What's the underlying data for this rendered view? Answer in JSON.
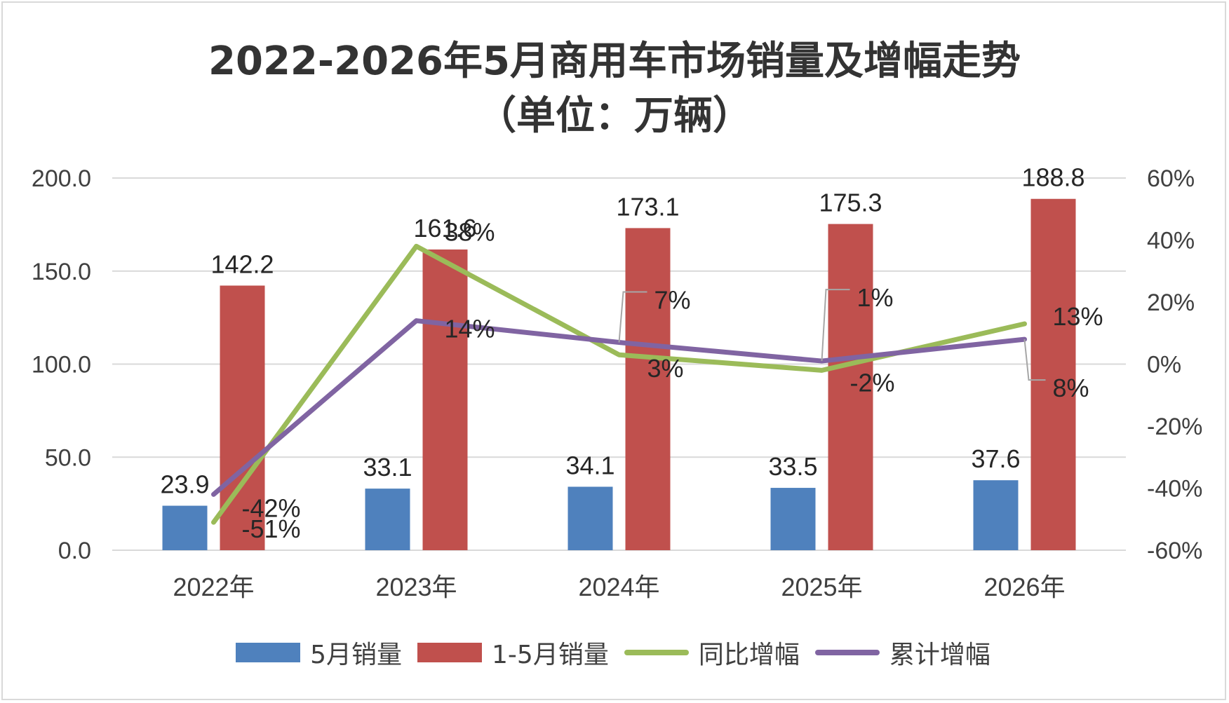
{
  "title_line1": "2022-2026年5月商用车市场销量及增幅走势",
  "title_line2": "（单位：万辆）",
  "colors": {
    "may_bar": "#4f81bd",
    "ytd_bar": "#c0504d",
    "yoy_line": "#9bbb59",
    "cum_line": "#8064a2",
    "grid": "#d9d9d9",
    "axis_text": "#404040"
  },
  "chart_data": {
    "type": "bar",
    "categories": [
      "2022年",
      "2023年",
      "2024年",
      "2025年",
      "2026年"
    ],
    "series": [
      {
        "name": "5月销量",
        "type": "bar",
        "axis": "left",
        "values": [
          23.9,
          33.1,
          34.1,
          33.5,
          37.6
        ],
        "labels": [
          "23.9",
          "33.1",
          "34.1",
          "33.5",
          "37.6"
        ]
      },
      {
        "name": "1-5月销量",
        "type": "bar",
        "axis": "left",
        "values": [
          142.2,
          161.6,
          173.1,
          175.3,
          188.8
        ],
        "labels": [
          "142.2",
          "161.6",
          "173.1",
          "175.3",
          "188.8"
        ]
      },
      {
        "name": "同比增幅",
        "type": "line",
        "axis": "right",
        "values": [
          -51,
          38,
          3,
          -2,
          13
        ],
        "labels": [
          "-51%",
          "38%",
          "3%",
          "-2%",
          "13%"
        ]
      },
      {
        "name": "累计增幅",
        "type": "line",
        "axis": "right",
        "values": [
          -42,
          14,
          7,
          1,
          8
        ],
        "labels": [
          "-42%",
          "14%",
          "7%",
          "1%",
          "8%"
        ]
      }
    ],
    "left_axis": {
      "min": 0,
      "max": 200,
      "step": 50,
      "tick_labels": [
        "0.0",
        "50.0",
        "100.0",
        "150.0",
        "200.0"
      ]
    },
    "right_axis": {
      "min": -60,
      "max": 60,
      "step": 20,
      "tick_labels": [
        "-60%",
        "-40%",
        "-20%",
        "0%",
        "20%",
        "40%",
        "60%"
      ]
    },
    "grid": true,
    "legend_position": "bottom"
  },
  "legend": [
    {
      "label": "5月销量",
      "kind": "bar",
      "color": "#4f81bd"
    },
    {
      "label": "1-5月销量",
      "kind": "bar",
      "color": "#c0504d"
    },
    {
      "label": "同比增幅",
      "kind": "line",
      "color": "#9bbb59"
    },
    {
      "label": "累计增幅",
      "kind": "line",
      "color": "#8064a2"
    }
  ]
}
